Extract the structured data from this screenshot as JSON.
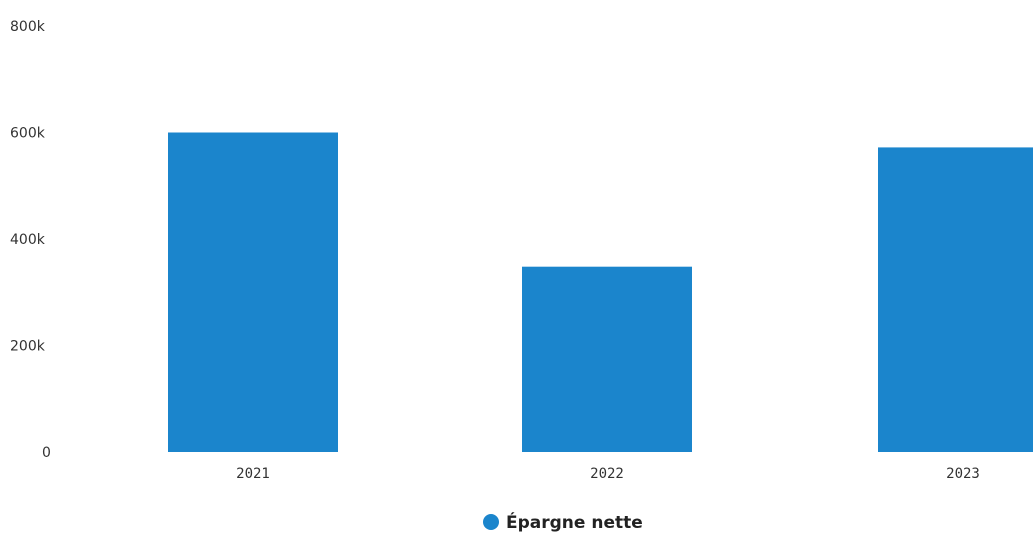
{
  "chart_data": {
    "type": "bar",
    "categories": [
      "2021",
      "2022",
      "2023"
    ],
    "series": [
      {
        "name": "Épargne nette",
        "values": [
          600000,
          348000,
          572000
        ]
      }
    ],
    "ylim": [
      0,
      800000
    ],
    "yticks": [
      {
        "value": 0,
        "label": "0"
      },
      {
        "value": 200000,
        "label": "200k"
      },
      {
        "value": 400000,
        "label": "400k"
      },
      {
        "value": 600000,
        "label": "600k"
      },
      {
        "value": 800000,
        "label": "800k"
      }
    ],
    "grid": false,
    "legend_position": "bottom-center",
    "colors": {
      "bar": "#1b85cc",
      "text": "#333333"
    }
  }
}
